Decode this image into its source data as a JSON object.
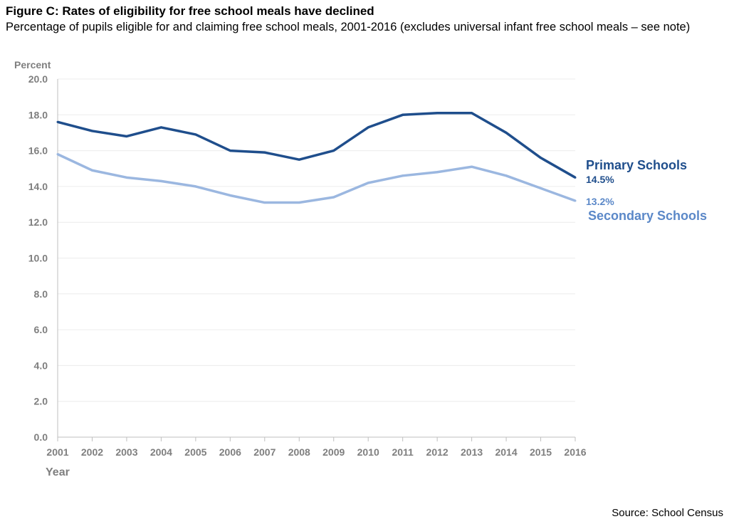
{
  "title": "Figure C: Rates of eligibility for free school meals have declined",
  "subtitle": "Percentage of pupils eligible for and claiming free school meals, 2001-2016 (excludes universal infant free school meals – see note)",
  "source": "Source: School Census",
  "chart_data": {
    "type": "line",
    "ylabel": "Percent",
    "xlabel": "Year",
    "ylim": [
      0,
      20
    ],
    "yticks": [
      "0.0",
      "2.0",
      "4.0",
      "6.0",
      "8.0",
      "10.0",
      "12.0",
      "14.0",
      "16.0",
      "18.0",
      "20.0"
    ],
    "grid": true,
    "x": [
      "2001",
      "2002",
      "2003",
      "2004",
      "2005",
      "2006",
      "2007",
      "2008",
      "2009",
      "2010",
      "2011",
      "2012",
      "2013",
      "2014",
      "2015",
      "2016"
    ],
    "series": [
      {
        "name": "Primary Schools",
        "end_label": "14.5%",
        "color": "#1f4e8c",
        "values": [
          17.6,
          17.1,
          16.8,
          17.3,
          16.9,
          16.0,
          15.9,
          15.5,
          16.0,
          17.3,
          18.0,
          18.1,
          18.1,
          17.0,
          15.6,
          14.5
        ]
      },
      {
        "name": "Secondary Schools",
        "end_label": "13.2%",
        "color": "#9bb7e0",
        "label_color": "#5b88c8",
        "values": [
          15.8,
          14.9,
          14.5,
          14.3,
          14.0,
          13.5,
          13.1,
          13.1,
          13.4,
          14.2,
          14.6,
          14.8,
          15.1,
          14.6,
          13.9,
          13.2
        ]
      }
    ]
  }
}
